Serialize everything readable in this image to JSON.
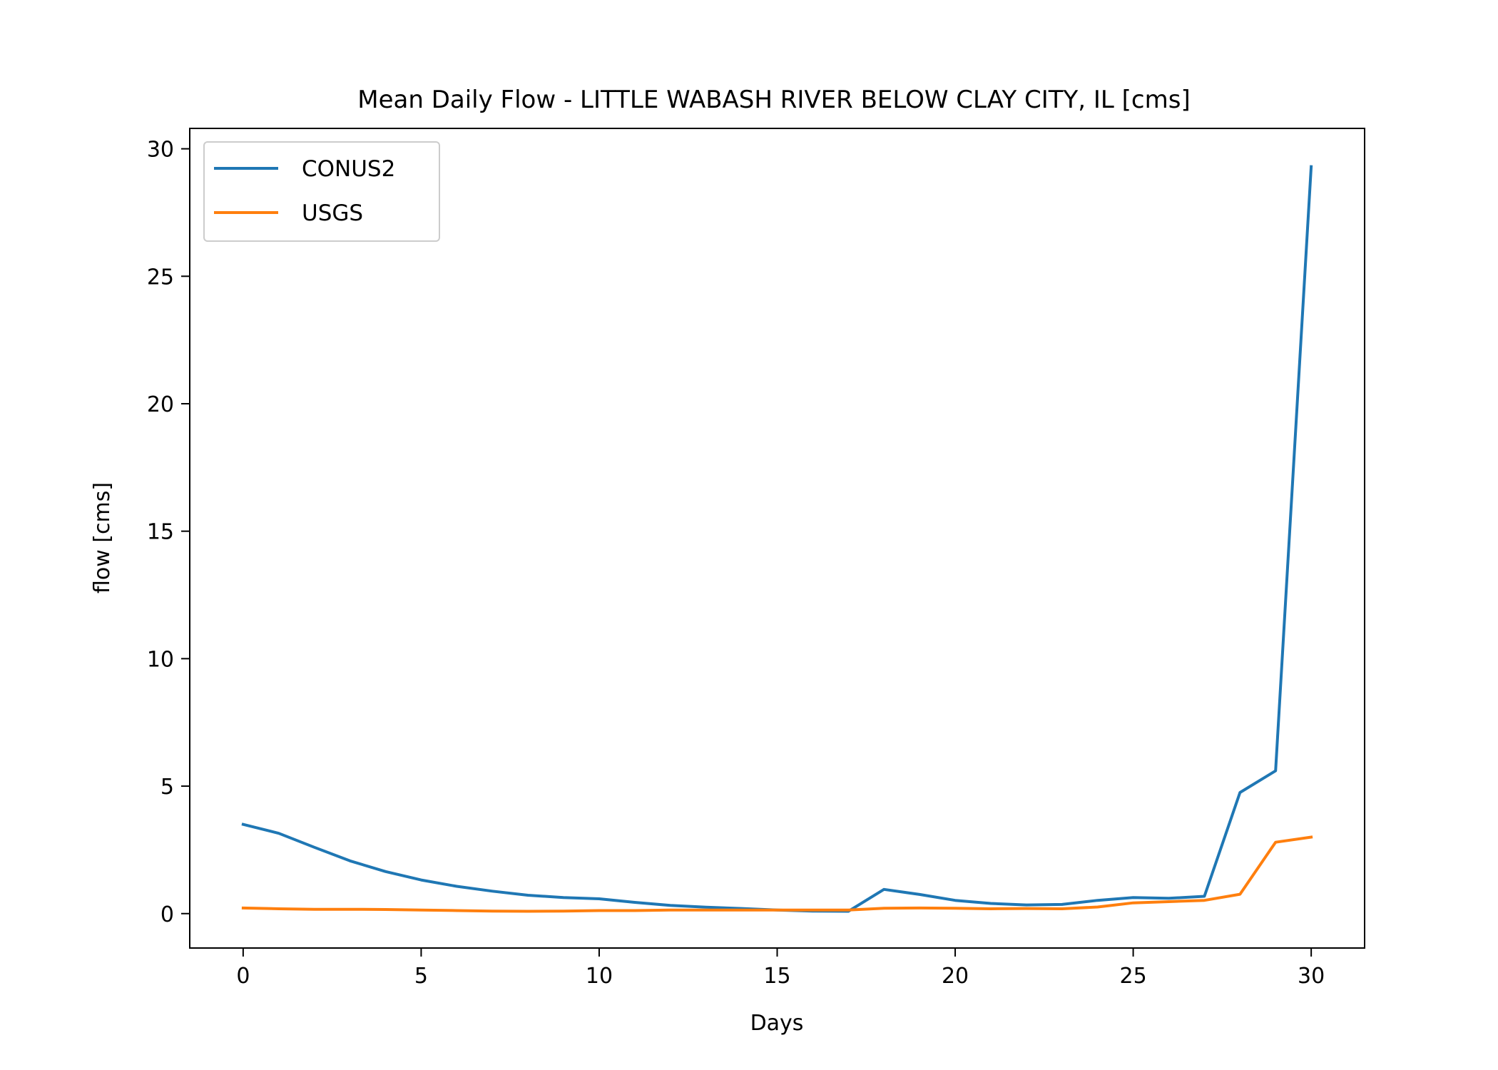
{
  "chart_data": {
    "type": "line",
    "title": "Mean Daily Flow - LITTLE WABASH RIVER BELOW CLAY CITY, IL [cms]",
    "xlabel": "Days",
    "ylabel": "flow [cms]",
    "xlim": [
      -1.5,
      31.5
    ],
    "ylim": [
      -1.35,
      30.8
    ],
    "xticks": [
      0,
      5,
      10,
      15,
      20,
      25,
      30
    ],
    "yticks": [
      0,
      5,
      10,
      15,
      20,
      25,
      30
    ],
    "grid": false,
    "legend_position": "top-left",
    "x": [
      0,
      1,
      2,
      3,
      4,
      5,
      6,
      7,
      8,
      9,
      10,
      11,
      12,
      13,
      14,
      15,
      16,
      17,
      18,
      19,
      20,
      21,
      22,
      23,
      24,
      25,
      26,
      27,
      28,
      29,
      30
    ],
    "series": [
      {
        "name": "CONUS2",
        "color": "#1f77b4",
        "values": [
          3.5,
          3.15,
          2.6,
          2.07,
          1.65,
          1.32,
          1.07,
          0.88,
          0.72,
          0.63,
          0.58,
          0.44,
          0.32,
          0.25,
          0.2,
          0.14,
          0.1,
          0.09,
          0.95,
          0.75,
          0.52,
          0.4,
          0.34,
          0.36,
          0.52,
          0.63,
          0.6,
          0.68,
          4.75,
          5.6,
          29.3
        ]
      },
      {
        "name": "USGS",
        "color": "#ff7f0e",
        "values": [
          0.22,
          0.19,
          0.17,
          0.17,
          0.16,
          0.14,
          0.12,
          0.1,
          0.09,
          0.1,
          0.12,
          0.12,
          0.14,
          0.14,
          0.14,
          0.14,
          0.14,
          0.14,
          0.21,
          0.22,
          0.21,
          0.19,
          0.2,
          0.19,
          0.26,
          0.42,
          0.47,
          0.52,
          0.76,
          2.8,
          3.0
        ]
      }
    ]
  }
}
